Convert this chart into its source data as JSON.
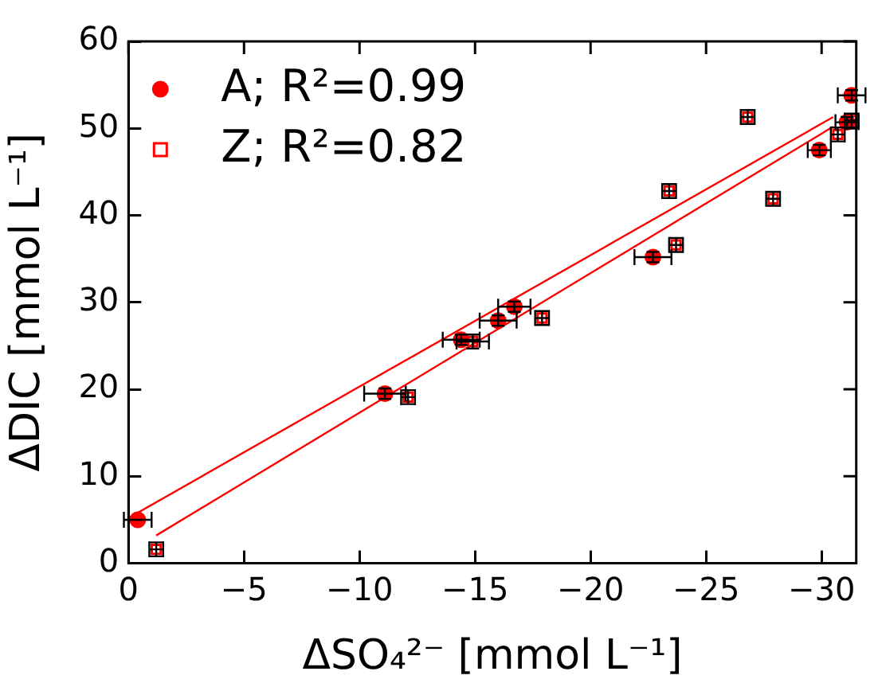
{
  "chart_data": {
    "type": "scatter",
    "xlabel": "ΔSO₄²⁻ [mmol L⁻¹]",
    "ylabel": "ΔDIC [mmol L⁻¹]",
    "xlim": [
      0,
      -31.5
    ],
    "xticks": [
      0,
      -5,
      -10,
      -15,
      -20,
      -25,
      -30
    ],
    "ylim": [
      0,
      60
    ],
    "yticks": [
      0,
      10,
      20,
      30,
      40,
      50,
      60
    ],
    "grid": false,
    "legend": "top left",
    "series": [
      {
        "name": "A; R²=0.99",
        "color": "#ff0000",
        "marker": "circle",
        "x": [
          -0.4,
          -11.1,
          -14.4,
          -16.0,
          -16.7,
          -22.7,
          -29.9,
          -31.1,
          -31.3
        ],
        "values": [
          5.0,
          19.5,
          25.7,
          27.9,
          29.5,
          35.2,
          47.5,
          50.7,
          53.8
        ],
        "xerrors": [
          0.6,
          0.9,
          0.8,
          0.8,
          0.7,
          0.8,
          0.5,
          0.5,
          0.6
        ],
        "errors": [
          null,
          0.6,
          0.6,
          0.6,
          0.6,
          0.6,
          0.6,
          0.6,
          0.6
        ]
      },
      {
        "name": "Z; R²=0.82",
        "color": "#ff0000",
        "marker": "square",
        "x": [
          -1.2,
          -12.1,
          -14.9,
          -17.9,
          -23.7,
          -23.4,
          -26.8,
          -27.9,
          -30.7,
          -31.3
        ],
        "values": [
          1.6,
          19.1,
          25.5,
          28.2,
          36.6,
          42.8,
          51.3,
          41.9,
          49.3,
          50.9
        ],
        "xerrors": [
          0.3,
          0.3,
          0.7,
          0.3,
          0.3,
          0.3,
          0.3,
          0.3,
          0.3,
          0.3
        ],
        "errors": [
          0.8,
          0.8,
          0.8,
          0.8,
          0.8,
          0.8,
          0.8,
          0.8,
          0.8,
          0.8
        ]
      },
      {
        "type": "line",
        "color": "#ff0000",
        "marker": "none",
        "x": [
          0,
          -30.5
        ],
        "values": [
          5.2,
          51.3
        ]
      },
      {
        "type": "line",
        "color": "#ff0000",
        "marker": "none",
        "x": [
          -1.2,
          -30.5
        ],
        "values": [
          3.2,
          50.2
        ]
      }
    ]
  }
}
